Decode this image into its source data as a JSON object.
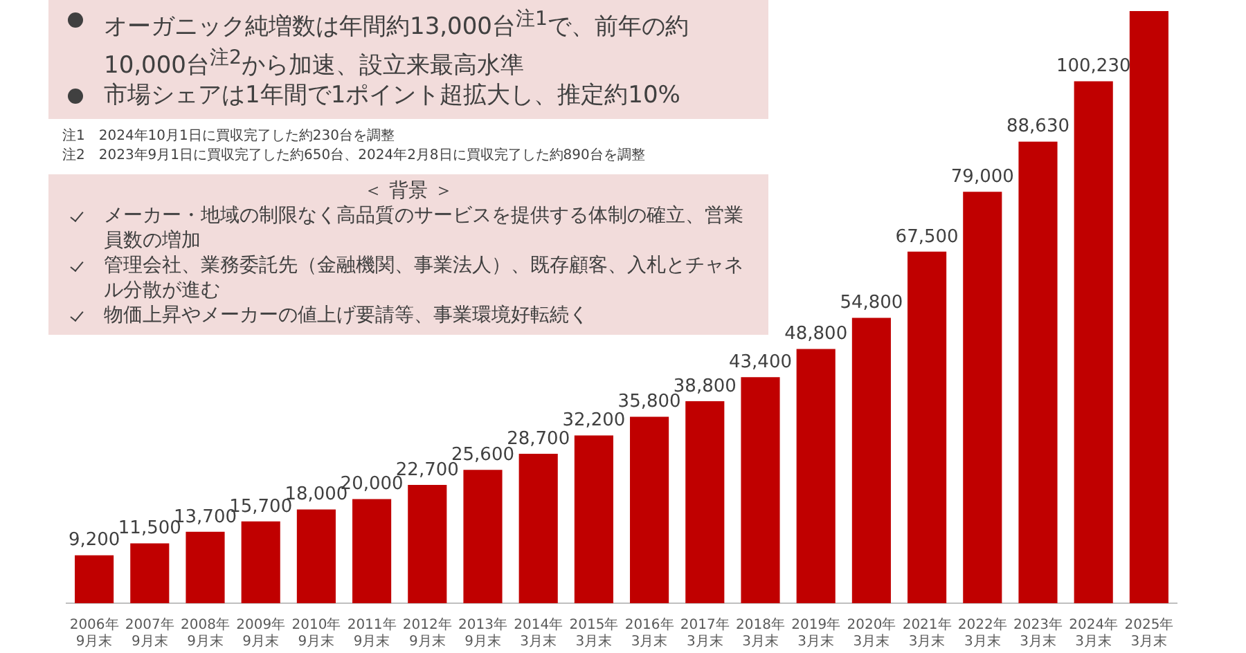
{
  "chart_data": {
    "type": "bar",
    "categories": [
      "2006年9月末",
      "2007年9月末",
      "2008年9月末",
      "2009年9月末",
      "2010年9月末",
      "2011年9月末",
      "2012年9月末",
      "2013年9月末",
      "2014年3月末",
      "2015年3月末",
      "2016年3月末",
      "2017年3月末",
      "2018年3月末",
      "2019年3月末",
      "2020年3月末",
      "2021年3月末",
      "2022年3月末",
      "2023年3月末",
      "2024年3月末",
      "2025年3月末"
    ],
    "values": [
      9200,
      11500,
      13700,
      15700,
      18000,
      20000,
      22700,
      25600,
      28700,
      32200,
      35800,
      38800,
      43400,
      48800,
      54800,
      67500,
      79000,
      88630,
      100230,
      113700
    ],
    "value_labels": [
      "9,200",
      "11,500",
      "13,700",
      "15,700",
      "18,000",
      "20,000",
      "22,700",
      "25,600",
      "28,700",
      "32,200",
      "35,800",
      "38,800",
      "43,400",
      "48,800",
      "54,800",
      "67,500",
      "79,000",
      "88,630",
      "100,230",
      null
    ],
    "color": "#c00000",
    "relative": false,
    "annotations": [
      "オーガニック純増数は年間約13,000台$^{注1}$で、前年の約10,000台$^{注2}$から加速、設立来最高水準",
      "市場シェアは1年間で1ポイント超拡大し、推定約10%",
      "注1　2024年10月1日に買収完了した約230台を調整",
      "注2　2023年9月1日に買収完了した約650台、2024年2月8日に買収完了した約890台を調整",
      "＜ 背景 ＞",
      "メーカー・地域の制限なく高品質のサービスを提供する体制の確立、営業員数の増加",
      "管理会社、業務委託先（金融機関、事業法人）、既存顧客、入札とチャネル分散が進む",
      "物価上昇やメーカーの値上げ要請等、事業環境好転続く"
    ]
  }
}
